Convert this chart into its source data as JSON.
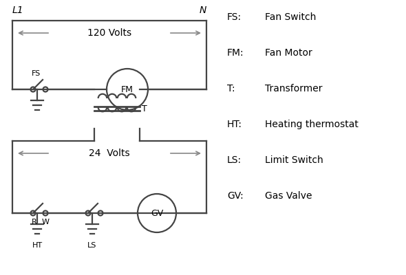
{
  "background_color": "#ffffff",
  "line_color": "#444444",
  "arrow_color": "#888888",
  "text_color": "#000000",
  "legend": {
    "FS": "Fan Switch",
    "FM": "Fan Motor",
    "T": "Transformer",
    "HT": "Heating thermostat",
    "LS": "Limit Switch",
    "GV": "Gas Valve"
  },
  "labels": {
    "L1": "L1",
    "N": "N",
    "FS": "FS",
    "FM": "FM",
    "T": "T",
    "R": "R",
    "W": "W",
    "HT": "HT",
    "LS": "LS",
    "GV": "GV",
    "120V": "120 Volts",
    "24V": "24  Volts"
  }
}
